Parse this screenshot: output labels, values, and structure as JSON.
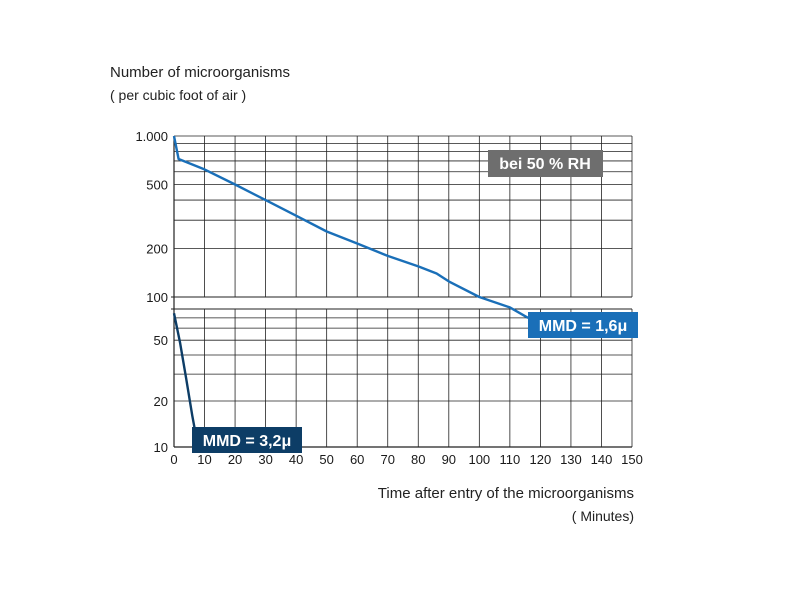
{
  "chart_data": {
    "type": "line",
    "ylabel": "Number of microorganisms",
    "ylabel_unit": "( per cubic foot of air )",
    "xlabel": "Time after entry of the microorganisms",
    "xlabel_unit": "( Minutes)",
    "x_ticks": [
      0,
      10,
      20,
      30,
      40,
      50,
      60,
      70,
      80,
      90,
      100,
      110,
      120,
      130,
      140,
      150
    ],
    "y_scale": "log",
    "y_ticks": [
      {
        "value": 10,
        "label": "10"
      },
      {
        "value": 20,
        "label": "20"
      },
      {
        "value": 50,
        "label": "50"
      },
      {
        "value": 100,
        "label": "100"
      },
      {
        "value": 200,
        "label": "200"
      },
      {
        "value": 500,
        "label": "500"
      },
      {
        "value": 1000,
        "label": "1.000"
      }
    ],
    "xlim": [
      0,
      150
    ],
    "ylim": [
      10,
      1000
    ],
    "grid": true,
    "condition_label": "bei 50 % RH",
    "colors": {
      "series_1": "#1a6fb8",
      "series_2": "#0d3d66",
      "condition_box": "#6e6e6e",
      "grid": "#222222"
    },
    "series": [
      {
        "name": "MMD = 1,6μ",
        "x": [
          0,
          1.5,
          10,
          20,
          30,
          40,
          50,
          60,
          70,
          80,
          86,
          90,
          100,
          110,
          116
        ],
        "y": [
          1000,
          720,
          620,
          500,
          400,
          320,
          255,
          215,
          180,
          155,
          140,
          125,
          100,
          82,
          70
        ]
      },
      {
        "name": "MMD = 3,2μ",
        "x": [
          0,
          2,
          4,
          6,
          7.5
        ],
        "y": [
          75,
          48,
          28,
          16,
          11
        ]
      }
    ]
  }
}
